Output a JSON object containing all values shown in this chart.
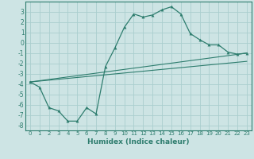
{
  "xlabel": "Humidex (Indice chaleur)",
  "background_color": "#cde4e4",
  "grid_color": "#aacece",
  "line_color": "#2e7d6e",
  "xlim": [
    -0.5,
    23.5
  ],
  "ylim": [
    -8.5,
    4.0
  ],
  "xtick_labels": [
    "0",
    "1",
    "2",
    "3",
    "4",
    "5",
    "6",
    "7",
    "8",
    "9",
    "10",
    "11",
    "12",
    "13",
    "14",
    "15",
    "16",
    "17",
    "18",
    "19",
    "20",
    "21",
    "22",
    "23"
  ],
  "xtick_vals": [
    0,
    1,
    2,
    3,
    4,
    5,
    6,
    7,
    8,
    9,
    10,
    11,
    12,
    13,
    14,
    15,
    16,
    17,
    18,
    19,
    20,
    21,
    22,
    23
  ],
  "ytick_vals": [
    -8,
    -7,
    -6,
    -5,
    -4,
    -3,
    -2,
    -1,
    0,
    1,
    2,
    3
  ],
  "ytick_labels": [
    "-8",
    "-7",
    "-6",
    "-5",
    "-4",
    "-3",
    "-2",
    "-1",
    "0",
    "1",
    "2",
    "3"
  ],
  "curve1_x": [
    0,
    1,
    2,
    3,
    4,
    5,
    6,
    7,
    8,
    9,
    10,
    11,
    12,
    13,
    14,
    15,
    16,
    17,
    18,
    19,
    20,
    21,
    22,
    23
  ],
  "curve1_y": [
    -3.8,
    -4.3,
    -6.3,
    -6.6,
    -7.6,
    -7.6,
    -6.3,
    -6.9,
    -2.3,
    -0.5,
    1.5,
    2.8,
    2.5,
    2.7,
    3.2,
    3.5,
    2.8,
    0.9,
    0.3,
    -0.2,
    -0.2,
    -0.9,
    -1.1,
    -1.0
  ],
  "line1_x": [
    0,
    23
  ],
  "line1_y": [
    -3.8,
    -1.0
  ],
  "line2_x": [
    0,
    23
  ],
  "line2_y": [
    -3.8,
    -1.8
  ]
}
